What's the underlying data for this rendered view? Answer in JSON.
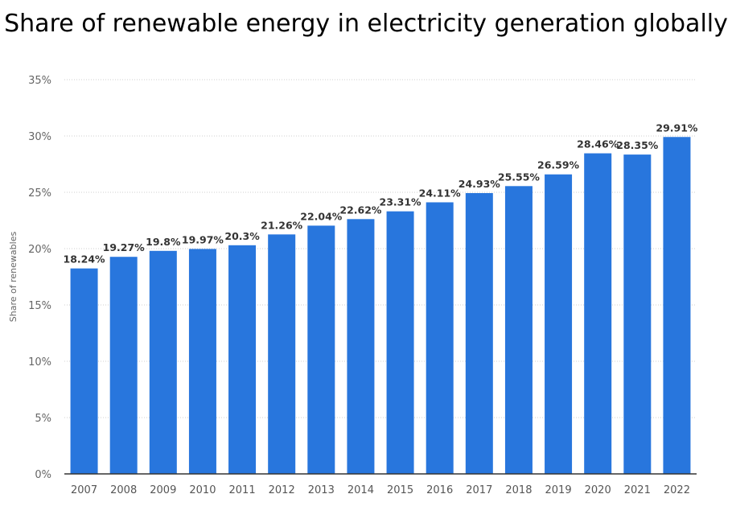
{
  "chart_data": {
    "type": "bar",
    "title": "Share of renewable energy in electricity generation globally",
    "ylabel": "Share of renewables",
    "xlabel": "",
    "ylim": [
      0,
      35
    ],
    "yticks": [
      "0%",
      "5%",
      "10%",
      "15%",
      "20%",
      "25%",
      "30%",
      "35%"
    ],
    "grid": true,
    "bar_color": "#2876dd",
    "categories": [
      "2007",
      "2008",
      "2009",
      "2010",
      "2011",
      "2012",
      "2013",
      "2014",
      "2015",
      "2016",
      "2017",
      "2018",
      "2019",
      "2020",
      "2021",
      "2022"
    ],
    "values": [
      18.24,
      19.27,
      19.8,
      19.97,
      20.3,
      21.26,
      22.04,
      22.62,
      23.31,
      24.11,
      24.93,
      25.55,
      26.59,
      28.46,
      28.35,
      29.91
    ],
    "labels": [
      "18.24%",
      "19.27%",
      "19.8%",
      "19.97%",
      "20.3%",
      "21.26%",
      "22.04%",
      "22.62%",
      "23.31%",
      "24.11%",
      "24.93%",
      "25.55%",
      "26.59%",
      "28.46%",
      "28.35%",
      "29.91%"
    ]
  }
}
